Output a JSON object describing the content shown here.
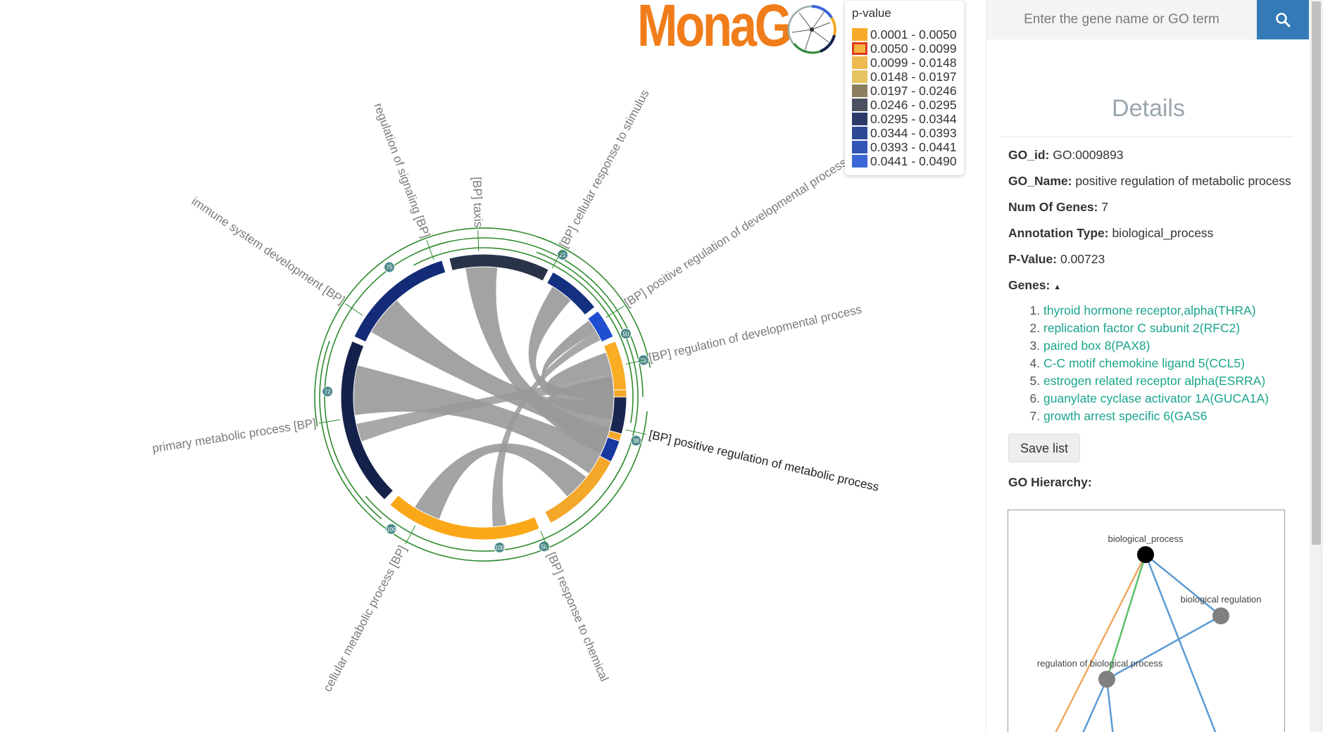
{
  "logo": {
    "text": "MonaG"
  },
  "legend": {
    "title": "p-value",
    "selected_index": 1,
    "items": [
      {
        "range": "0.0001 - 0.0050",
        "color": "#f8aa2a"
      },
      {
        "range": "0.0050 - 0.0099",
        "color": "#f2b340"
      },
      {
        "range": "0.0099 - 0.0148",
        "color": "#eebb50"
      },
      {
        "range": "0.0148 - 0.0197",
        "color": "#e6c35f"
      },
      {
        "range": "0.0197 - 0.0246",
        "color": "#8a7e5e"
      },
      {
        "range": "0.0246 - 0.0295",
        "color": "#4b5160"
      },
      {
        "range": "0.0295 - 0.0344",
        "color": "#2c3a6a"
      },
      {
        "range": "0.0344 - 0.0393",
        "color": "#2e4996"
      },
      {
        "range": "0.0393 - 0.0441",
        "color": "#3255b8"
      },
      {
        "range": "0.0441 - 0.0490",
        "color": "#3a66d6"
      }
    ]
  },
  "chart_data": {
    "type": "chord",
    "terms": [
      {
        "name": "[BP] positive regulation of metabolic process",
        "color": "#f4a82a",
        "highlighted": true
      },
      {
        "name": "[BP] response to chemical",
        "color": "#fba818",
        "highlighted": false
      },
      {
        "name": "cellular metabolic process [BP]",
        "color": "#14214a",
        "highlighted": false
      },
      {
        "name": "primary metabolic process [BP]",
        "color": "#142c78",
        "highlighted": false
      },
      {
        "name": "immune system development [BP]",
        "color": "#283348",
        "highlighted": false
      },
      {
        "name": "regulation of signaling [BP]",
        "color": "#143080",
        "highlighted": false
      },
      {
        "name": "[BP] taxis",
        "color": "#1f4fd0",
        "highlighted": false
      },
      {
        "name": "[BP] cellular response to stimulus",
        "color": "#f9ad25",
        "highlighted": false
      },
      {
        "name": "[BP] positive regulation of developmental process",
        "color": "#19264e",
        "highlighted": false
      },
      {
        "name": "[BP] regulation of developmental process",
        "color": "#1838a0",
        "highlighted": false
      }
    ],
    "gene_count_badges": [
      "21",
      "50",
      "28",
      "38",
      "50",
      "100",
      "100",
      "72",
      "75"
    ],
    "chord_color": "#999999"
  },
  "sidebar": {
    "search_placeholder": "Enter the gene name or GO term",
    "details_title": "Details",
    "go_id_label": "GO_id:",
    "go_id": "GO:0009893",
    "go_name_label": "GO_Name:",
    "go_name": "positive regulation of metabolic process",
    "num_genes_label": "Num Of Genes:",
    "num_genes": "7",
    "annotation_label": "Annotation Type:",
    "annotation": "biological_process",
    "pvalue_label": "P-Value:",
    "pvalue": "0.00723",
    "genes_label": "Genes:",
    "genes": [
      "thyroid hormone receptor,alpha(THRA)",
      "replication factor C subunit 2(RFC2)",
      "paired box 8(PAX8)",
      "C-C motif chemokine ligand 5(CCL5)",
      "estrogen related receptor alpha(ESRRA)",
      "guanylate cyclase activator 1A(GUCA1A)",
      "growth arrest specific 6(GAS6"
    ],
    "save_label": "Save list",
    "hierarchy_label": "GO Hierarchy:",
    "hierarchy_nodes": [
      "biological_process",
      "biological regulation",
      "regulation of biological process"
    ]
  }
}
